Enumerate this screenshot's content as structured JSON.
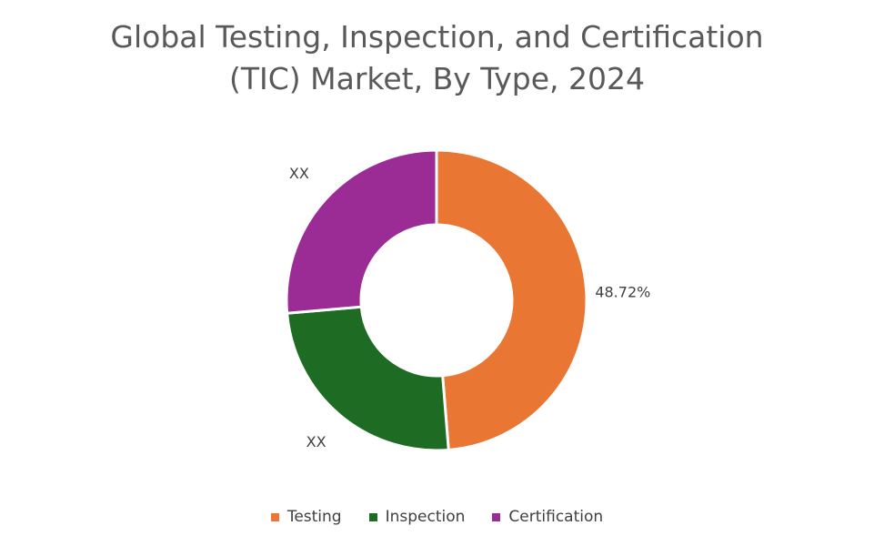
{
  "chart_data": {
    "type": "donut",
    "title": "Global Testing, Inspection, and Certification (TIC) Market, By Type, 2024",
    "categories": [
      "Testing",
      "Inspection",
      "Certification"
    ],
    "values": [
      48.72,
      24.9,
      26.38
    ],
    "value_labels": [
      "48.72%",
      "XX",
      "XX"
    ],
    "colors": [
      "#e97632",
      "#1e6b23",
      "#9b2c96"
    ]
  }
}
